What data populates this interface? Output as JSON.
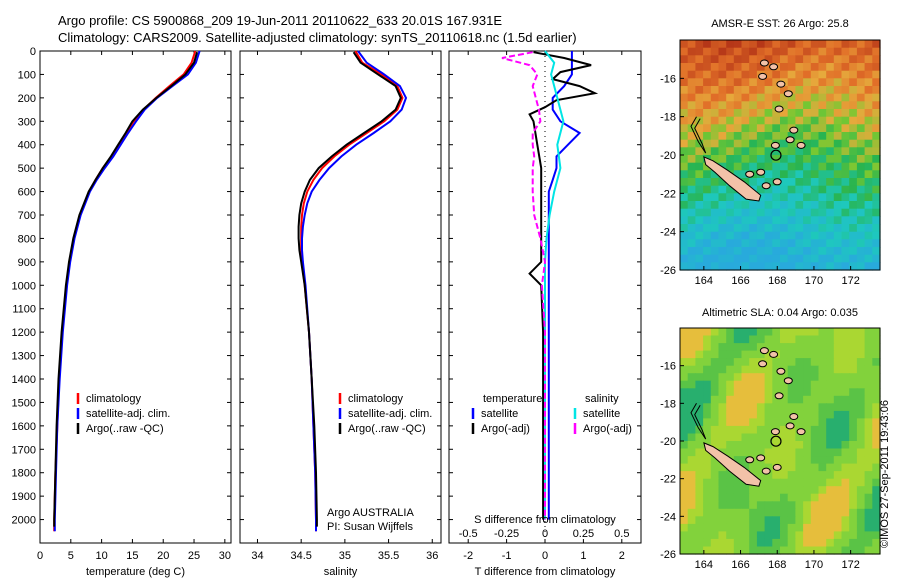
{
  "header": {
    "line1": "Argo profile: CS 5900868_209 19-Jun-2011 20110622_633 20.01S 167.931E",
    "line2": "Climatology: CARS2009. Satellite-adjusted climatology: synTS_20110618.nc (1.5d earlier)"
  },
  "side_text": "©IMOS 27-Sep-2011 19:43:06",
  "colors": {
    "climatology": "#ff0000",
    "satellite": "#0000ff",
    "argo": "#000000",
    "salinity_sat": "#00e5e5",
    "salinity_argo": "#ff00ff"
  },
  "maps": [
    {
      "title": "AMSR-E SST: 26 Argo: 25.8",
      "x_ticks": [
        "164",
        "166",
        "168",
        "170",
        "172"
      ],
      "y_ticks": [
        "-16",
        "-18",
        "-20",
        "-22",
        "-24",
        "-26"
      ],
      "field": "sst"
    },
    {
      "title": "Altimetric SLA: 0.04 Argo: 0.035",
      "x_ticks": [
        "164",
        "166",
        "168",
        "170",
        "172"
      ],
      "y_ticks": [
        "-16",
        "-18",
        "-20",
        "-22",
        "-24",
        "-26"
      ],
      "field": "sla"
    }
  ],
  "chart_data": [
    {
      "type": "line",
      "panel": "temperature",
      "xlabel": "temperature (deg C)",
      "ylabel": "",
      "xlim": [
        0,
        31
      ],
      "ylim": [
        2100,
        0
      ],
      "x_ticks": [
        "0",
        "5",
        "10",
        "15",
        "20",
        "25",
        "30"
      ],
      "y_ticks": [
        "0",
        "100",
        "200",
        "300",
        "400",
        "500",
        "600",
        "700",
        "800",
        "900",
        "1000",
        "1100",
        "1200",
        "1300",
        "1400",
        "1500",
        "1600",
        "1700",
        "1800",
        "1900",
        "2000"
      ],
      "legend": [
        "climatology",
        "satellite-adj. clim.",
        "Argo(..raw -QC)"
      ],
      "legend_position": "lower-center",
      "series": [
        {
          "name": "climatology",
          "color": "#ff0000",
          "depth": [
            0,
            50,
            100,
            150,
            200,
            250,
            300,
            350,
            400,
            450,
            500,
            550,
            600,
            700,
            800,
            900,
            1000,
            1200,
            1400,
            1600,
            1800,
            2000,
            2050
          ],
          "values": [
            25.2,
            24.6,
            23.3,
            21.0,
            18.8,
            16.8,
            15.2,
            14.0,
            12.8,
            11.6,
            10.2,
            9.0,
            8.0,
            6.5,
            5.5,
            4.8,
            4.3,
            3.6,
            3.1,
            2.8,
            2.5,
            2.3,
            2.3
          ]
        },
        {
          "name": "satellite-adj. clim.",
          "color": "#0000ff",
          "depth": [
            0,
            50,
            100,
            150,
            200,
            250,
            300,
            350,
            400,
            450,
            500,
            550,
            600,
            700,
            800,
            900,
            1000,
            1200,
            1400,
            1600,
            1800,
            2000,
            2050
          ],
          "values": [
            25.9,
            25.3,
            24.0,
            21.5,
            19.0,
            17.0,
            15.6,
            14.3,
            13.1,
            11.9,
            10.5,
            9.2,
            8.1,
            6.6,
            5.6,
            4.9,
            4.4,
            3.7,
            3.2,
            2.8,
            2.6,
            2.4,
            2.4
          ]
        },
        {
          "name": "Argo(..raw -QC)",
          "color": "#000000",
          "depth": [
            5,
            50,
            100,
            150,
            200,
            250,
            300,
            350,
            400,
            450,
            500,
            550,
            600,
            700,
            800,
            900,
            1000,
            1200,
            1400,
            1600,
            1800,
            2000,
            2030
          ],
          "values": [
            25.5,
            25.0,
            23.6,
            21.3,
            18.9,
            16.7,
            15.0,
            13.9,
            12.7,
            11.5,
            10.2,
            9.0,
            7.9,
            6.4,
            5.4,
            4.7,
            4.2,
            3.5,
            3.0,
            2.7,
            2.5,
            2.3,
            2.3
          ]
        }
      ]
    },
    {
      "type": "line",
      "panel": "salinity",
      "xlabel": "salinity",
      "ylabel": "",
      "xlim": [
        33.8,
        36.1
      ],
      "ylim": [
        2100,
        0
      ],
      "x_ticks": [
        "34",
        "34.5",
        "35",
        "35.5",
        "36"
      ],
      "legend": [
        "climatology",
        "satellite-adj. clim.",
        "Argo(..raw -QC)"
      ],
      "legend_position": "lower-center",
      "annotation": [
        "Argo AUSTRALIA",
        "PI: Susan Wijffels"
      ],
      "series": [
        {
          "name": "climatology",
          "color": "#ff0000",
          "depth": [
            0,
            50,
            100,
            150,
            200,
            250,
            300,
            350,
            400,
            450,
            500,
            550,
            600,
            650,
            700,
            750,
            800,
            850,
            900,
            1000,
            1200,
            1400,
            1600,
            1800,
            2000,
            2050
          ],
          "values": [
            35.12,
            35.2,
            35.42,
            35.6,
            35.66,
            35.6,
            35.45,
            35.25,
            35.05,
            34.88,
            34.74,
            34.64,
            34.57,
            34.53,
            34.51,
            34.5,
            34.5,
            34.5,
            34.51,
            34.54,
            34.59,
            34.62,
            34.64,
            34.66,
            34.67,
            34.67
          ]
        },
        {
          "name": "satellite-adj. clim.",
          "color": "#0000ff",
          "depth": [
            0,
            50,
            100,
            150,
            200,
            250,
            300,
            350,
            400,
            450,
            500,
            550,
            600,
            650,
            700,
            750,
            800,
            850,
            900,
            1000,
            1200,
            1400,
            1600,
            1800,
            2000,
            2050
          ],
          "values": [
            35.15,
            35.25,
            35.45,
            35.63,
            35.7,
            35.65,
            35.52,
            35.33,
            35.13,
            34.96,
            34.82,
            34.71,
            34.62,
            34.57,
            34.54,
            34.52,
            34.51,
            34.51,
            34.52,
            34.55,
            34.59,
            34.62,
            34.64,
            34.66,
            34.67,
            34.67
          ]
        },
        {
          "name": "Argo(..raw -QC)",
          "color": "#000000",
          "depth": [
            5,
            50,
            100,
            150,
            200,
            250,
            300,
            350,
            400,
            450,
            500,
            550,
            600,
            650,
            700,
            750,
            800,
            850,
            900,
            1000,
            1200,
            1400,
            1600,
            1800,
            2000,
            2030
          ],
          "values": [
            35.1,
            35.18,
            35.38,
            35.58,
            35.64,
            35.58,
            35.42,
            35.22,
            35.02,
            34.85,
            34.7,
            34.6,
            34.54,
            34.5,
            34.48,
            34.47,
            34.47,
            34.48,
            34.5,
            34.54,
            34.59,
            34.62,
            34.65,
            34.67,
            34.68,
            34.68
          ]
        }
      ]
    },
    {
      "type": "line",
      "panel": "difference",
      "xlabel": "T difference from climatology",
      "xlabel_top": "S difference from climatology",
      "ylabel": "",
      "xlim": [
        -2.5,
        2.5
      ],
      "ylim": [
        2100,
        0
      ],
      "x_ticks": [
        "-2",
        "-1",
        "0",
        "1",
        "2"
      ],
      "x_ticks_top": [
        "-0.5",
        "-0.25",
        "0",
        "0.25",
        "0.5"
      ],
      "legend_headers": [
        "temperature",
        "salinity"
      ],
      "legend": [
        "satellite",
        "Argo(-adj)",
        "satellite",
        "Argo(-adj)"
      ],
      "legend_position": "center",
      "series": [
        {
          "name": "satellite",
          "group": "temperature",
          "color": "#0000ff",
          "depth": [
            0,
            50,
            100,
            150,
            200,
            250,
            300,
            350,
            400,
            450,
            500,
            550,
            600,
            700,
            800,
            900,
            1000,
            1200,
            1500,
            2000
          ],
          "values": [
            0.7,
            0.7,
            0.7,
            0.5,
            0.2,
            0.2,
            0.4,
            0.9,
            0.6,
            0.3,
            0.3,
            0.2,
            0.1,
            0.1,
            0.1,
            0.1,
            0.1,
            0.1,
            0.1,
            0.1
          ]
        },
        {
          "name": "Argo(-adj)",
          "group": "temperature",
          "color": "#000000",
          "depth": [
            5,
            30,
            60,
            90,
            120,
            150,
            180,
            210,
            240,
            270,
            300,
            400,
            500,
            600,
            700,
            800,
            900,
            950,
            1000,
            1200,
            1500,
            1800,
            2000
          ],
          "values": [
            -0.3,
            0.5,
            1.2,
            0.4,
            0.2,
            0.9,
            1.3,
            0.3,
            0.0,
            -0.4,
            -0.3,
            -0.2,
            -0.1,
            -0.1,
            -0.1,
            -0.1,
            -0.1,
            -0.4,
            -0.1,
            -0.05,
            -0.05,
            -0.05,
            -0.05
          ]
        },
        {
          "name": "satellite",
          "group": "salinity",
          "color": "#00e5e5",
          "depth": [
            0,
            50,
            100,
            200,
            300,
            400,
            500,
            600,
            700,
            800,
            900,
            1000,
            1200,
            1500,
            2000
          ],
          "values": [
            0.0,
            0.06,
            0.04,
            0.08,
            0.12,
            0.08,
            0.1,
            0.06,
            0.03,
            0.01,
            0.0,
            0.0,
            0.0,
            0.0,
            0.0
          ]
        },
        {
          "name": "Argo(-adj)",
          "group": "salinity",
          "color": "#ff00ff",
          "depth": [
            5,
            30,
            60,
            100,
            150,
            200,
            250,
            300,
            350,
            400,
            450,
            500,
            600,
            700,
            800,
            900,
            1000,
            1200,
            1500,
            1800,
            2000
          ],
          "values": [
            -0.08,
            -0.28,
            -0.1,
            -0.05,
            -0.08,
            -0.06,
            -0.04,
            -0.03,
            -0.08,
            -0.08,
            -0.07,
            -0.08,
            -0.08,
            -0.07,
            -0.03,
            0.0,
            -0.02,
            0.0,
            0.0,
            0.0,
            0.0
          ]
        }
      ]
    }
  ]
}
